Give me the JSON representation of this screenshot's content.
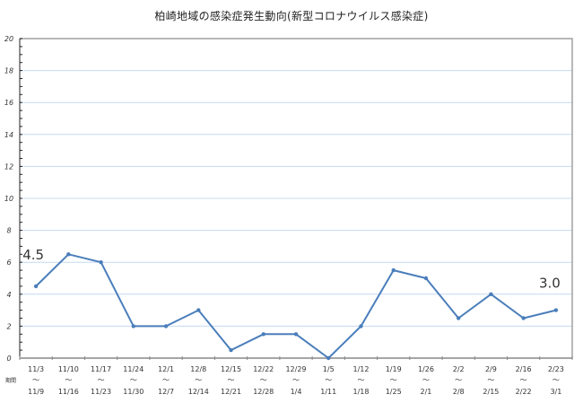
{
  "chart_data": {
    "type": "line",
    "title": "柏崎地域の感染症発生動向(新型コロナウイルス感染症)",
    "xlabel": "期間",
    "ylabel": "",
    "ylim": [
      0,
      20
    ],
    "yticks": [
      0,
      2,
      4,
      6,
      8,
      10,
      12,
      14,
      16,
      18,
      20
    ],
    "grid": true,
    "legend": "none",
    "categories": [
      {
        "start": "11/3",
        "end": "11/9"
      },
      {
        "start": "11/10",
        "end": "11/16"
      },
      {
        "start": "11/17",
        "end": "11/23"
      },
      {
        "start": "11/24",
        "end": "11/30"
      },
      {
        "start": "12/1",
        "end": "12/7"
      },
      {
        "start": "12/8",
        "end": "12/14"
      },
      {
        "start": "12/15",
        "end": "12/21"
      },
      {
        "start": "12/22",
        "end": "12/28"
      },
      {
        "start": "12/29",
        "end": "1/4"
      },
      {
        "start": "1/5",
        "end": "1/11"
      },
      {
        "start": "1/12",
        "end": "1/18"
      },
      {
        "start": "1/19",
        "end": "1/25"
      },
      {
        "start": "1/26",
        "end": "2/1"
      },
      {
        "start": "2/2",
        "end": "2/8"
      },
      {
        "start": "2/9",
        "end": "2/15"
      },
      {
        "start": "2/16",
        "end": "2/22"
      },
      {
        "start": "2/23",
        "end": "3/1"
      }
    ],
    "range_separator": "～",
    "series": [
      {
        "name": "柏崎",
        "color": "#4a7ebb",
        "values": [
          4.5,
          6.5,
          6.0,
          2.0,
          2.0,
          3.0,
          0.5,
          1.5,
          1.5,
          0.0,
          2.0,
          5.5,
          5.0,
          2.5,
          4.0,
          2.5,
          3.0
        ]
      }
    ],
    "annotations": [
      {
        "index": 0,
        "text": "4.5"
      },
      {
        "index": 16,
        "text": "3.0"
      }
    ]
  },
  "colors": {
    "line": "#4a7ebb",
    "grid": "#c6d9f1",
    "axis": "#888888"
  }
}
